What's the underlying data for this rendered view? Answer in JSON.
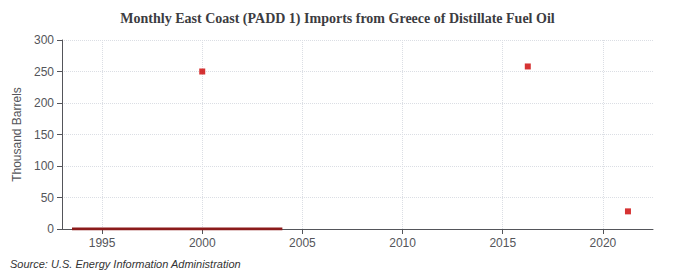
{
  "chart_data": {
    "type": "line",
    "title": "Monthly East Coast (PADD 1) Imports from Greece of Distillate Fuel Oil",
    "ylabel": "Thousand Barrels",
    "annotation": "Source: U.S. Energy Information Administration",
    "xlim": [
      1993.0,
      2022.5
    ],
    "ylim": [
      0,
      300
    ],
    "xticks": [
      1995,
      2000,
      2005,
      2010,
      2015,
      2020
    ],
    "yticks": [
      0,
      50,
      100,
      150,
      200,
      250,
      300
    ],
    "grid": true,
    "series": [
      {
        "type": "line",
        "color": "#8b1a1a",
        "x": [
          1993.5,
          1994.0,
          1994.5,
          1995.0,
          1995.5,
          1996.0,
          1996.5,
          1997.0,
          1997.5,
          1998.0,
          1998.5,
          1999.0,
          1999.5,
          2000.0,
          2000.5,
          2001.0,
          2001.5,
          2002.0,
          2002.5,
          2003.0,
          2003.5,
          2004.0
        ],
        "values": [
          0,
          0,
          0,
          0,
          0,
          0,
          0,
          0,
          0,
          0,
          0,
          0,
          0,
          0,
          0,
          0,
          0,
          0,
          0,
          0,
          0,
          0
        ]
      },
      {
        "type": "scatter",
        "color": "#cc0000",
        "marker": "square",
        "x": [
          2000.0,
          2016.25,
          2021.25
        ],
        "values": [
          250,
          258,
          28
        ]
      }
    ]
  }
}
